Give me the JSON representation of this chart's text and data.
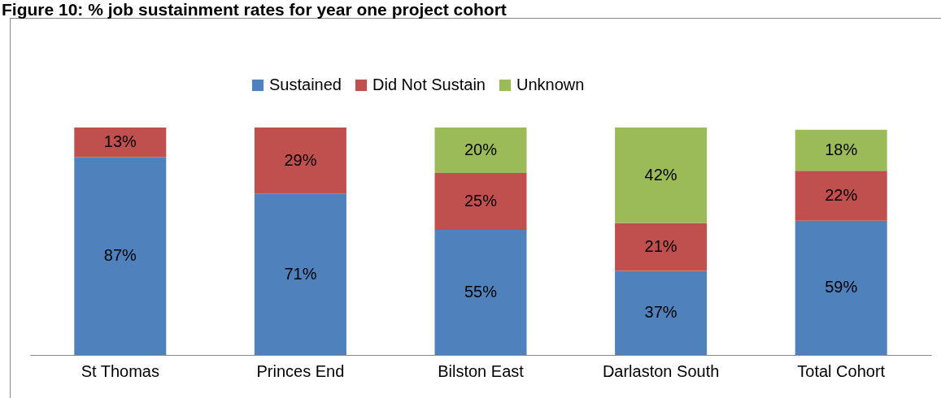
{
  "chart_data": {
    "type": "bar",
    "title": "Figure 10: % job sustainment rates for year one project cohort",
    "categories": [
      "St Thomas",
      "Princes End",
      "Bilston East",
      "Darlaston South",
      "Total Cohort"
    ],
    "stacked": true,
    "legend": "top",
    "grid": false,
    "series": [
      {
        "name": "Sustained",
        "color": "#4f81bd",
        "values": [
          87,
          71,
          55,
          37,
          59
        ],
        "value_labels": [
          "87%",
          "71%",
          "55%",
          "37%",
          "59%"
        ]
      },
      {
        "name": "Did Not Sustain",
        "color": "#c0504d",
        "values": [
          13,
          29,
          25,
          21,
          22
        ],
        "value_labels": [
          "13%",
          "29%",
          "25%",
          "21%",
          "22%"
        ]
      },
      {
        "name": "Unknown",
        "color": "#9bbb59",
        "values": [
          null,
          null,
          20,
          42,
          18
        ],
        "value_labels": [
          null,
          null,
          "20%",
          "42%",
          "18%"
        ]
      }
    ]
  }
}
